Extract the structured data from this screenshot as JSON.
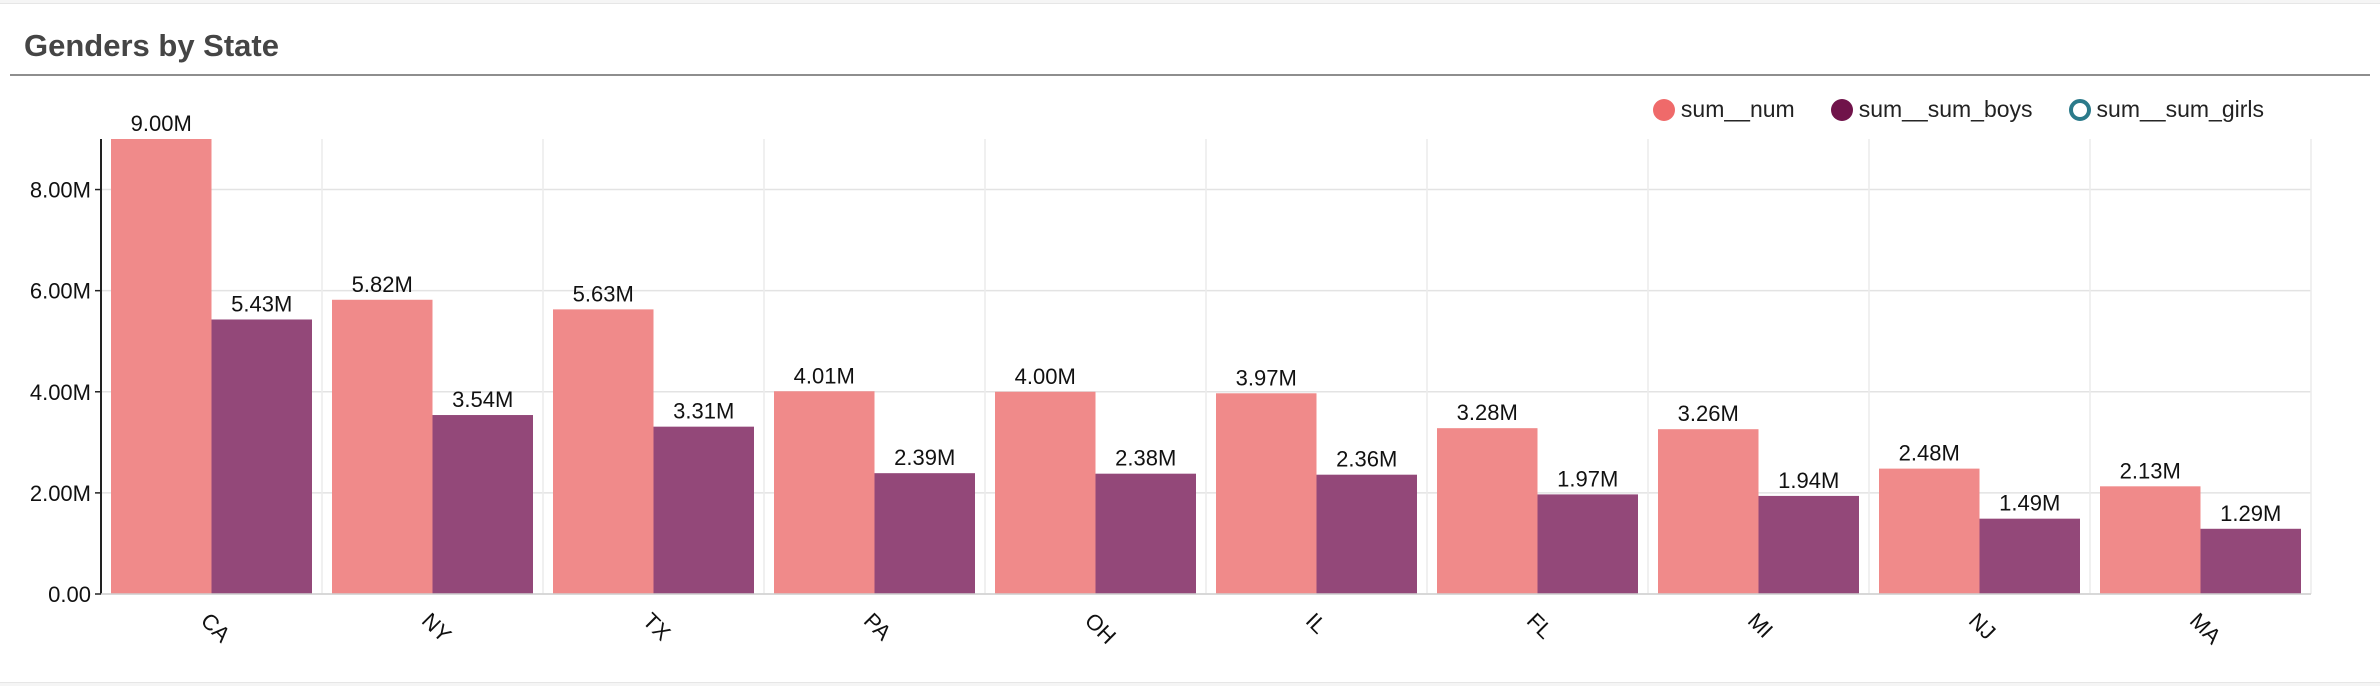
{
  "panel": {
    "title": "Genders by State"
  },
  "legend": [
    {
      "label": "sum__num",
      "color": "#ef6a6a",
      "filled": true
    },
    {
      "label": "sum__sum_boys",
      "color": "#70134a",
      "filled": true
    },
    {
      "label": "sum__sum_girls",
      "color": "#2b7a8a",
      "filled": false
    }
  ],
  "chart_data": {
    "type": "bar",
    "title": "Genders by State",
    "xlabel": "",
    "ylabel": "",
    "ylim": [
      0,
      9000000
    ],
    "grid": true,
    "legend_position": "top-right",
    "categories": [
      "CA",
      "NY",
      "TX",
      "PA",
      "OH",
      "IL",
      "FL",
      "MI",
      "NJ",
      "MA"
    ],
    "yticks": [
      0,
      2000000,
      4000000,
      6000000,
      8000000
    ],
    "ytick_labels": [
      "0.00",
      "2.00M",
      "4.00M",
      "6.00M",
      "8.00M"
    ],
    "series": [
      {
        "name": "sum__num",
        "color": "#f08a8a",
        "values": [
          9000000,
          5820000,
          5630000,
          4010000,
          4000000,
          3970000,
          3280000,
          3260000,
          2480000,
          2130000
        ],
        "labels": [
          "9.00M",
          "5.82M",
          "5.63M",
          "4.01M",
          "4.00M",
          "3.97M",
          "3.28M",
          "3.26M",
          "2.48M",
          "2.13M"
        ]
      },
      {
        "name": "sum__sum_boys",
        "color": "#934879",
        "values": [
          5430000,
          3540000,
          3310000,
          2390000,
          2380000,
          2360000,
          1970000,
          1940000,
          1490000,
          1290000
        ],
        "labels": [
          "5.43M",
          "3.54M",
          "3.31M",
          "2.39M",
          "2.38M",
          "2.36M",
          "1.97M",
          "1.94M",
          "1.49M",
          "1.29M"
        ]
      }
    ]
  }
}
